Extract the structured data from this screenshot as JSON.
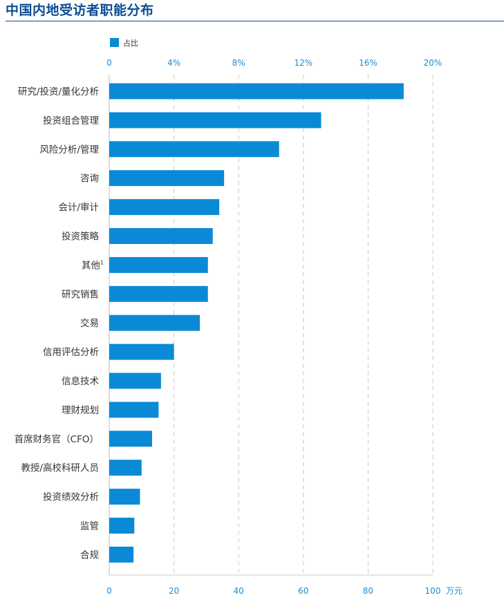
{
  "title": "中国内地受访者职能分布",
  "colors": {
    "bar": "#0a8ad6",
    "grid": "#c8c8c8",
    "axis_text": "#1d8ccd",
    "title": "#0d4c92"
  },
  "chart_data": {
    "type": "bar",
    "orientation": "horizontal",
    "title": "中国内地受访者职能分布",
    "legend": {
      "entries": [
        "占比"
      ],
      "position": "top-left"
    },
    "top_axis": {
      "min": 0,
      "max": 20,
      "ticks": [
        "0",
        "4%",
        "8%",
        "12%",
        "16%",
        "20%"
      ]
    },
    "bottom_axis": {
      "min": 0,
      "max": 100,
      "ticks": [
        "0",
        "20",
        "40",
        "60",
        "80",
        "100"
      ],
      "unit": "万元"
    },
    "grid": true,
    "categories": [
      "研究/投资/量化分析",
      "投资组合管理",
      "风险分析/管理",
      "咨询",
      "会计/审计",
      "投资策略",
      "其他",
      "研究销售",
      "交易",
      "信用评估分析",
      "信息技术",
      "理财规划",
      "首席财务官（CFO）",
      "教授/高校科研人员",
      "投资绩效分析",
      "监管",
      "合规"
    ],
    "footnote_marks": {
      "6": "1"
    },
    "values": [
      18.2,
      13.1,
      10.5,
      7.1,
      6.8,
      6.4,
      6.1,
      6.1,
      5.6,
      4.0,
      3.2,
      3.05,
      2.65,
      2.0,
      1.9,
      1.55,
      1.5
    ]
  }
}
